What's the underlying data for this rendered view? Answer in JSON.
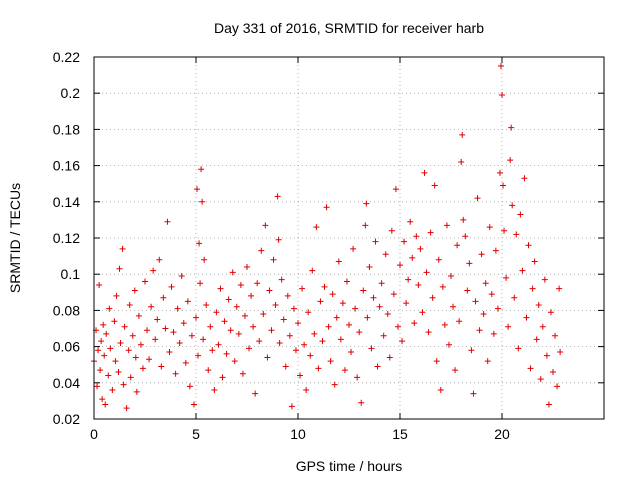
{
  "chart_data": {
    "type": "scatter",
    "title": "Day 331 of 2016, SRMTID for receiver harb",
    "xlabel": "GPS time / hours",
    "ylabel": "SRMTID / TECUs",
    "xlim": [
      0,
      25
    ],
    "ylim": [
      0.02,
      0.22
    ],
    "x_ticks": [
      0,
      5,
      10,
      15,
      20
    ],
    "x_tick_labels": [
      "0",
      "5",
      "10",
      "15",
      "20"
    ],
    "y_ticks": [
      0.02,
      0.04,
      0.06,
      0.08,
      0.1,
      0.12,
      0.14,
      0.16,
      0.18,
      0.2,
      0.22
    ],
    "y_tick_labels": [
      "0.02",
      "0.04",
      "0.06",
      "0.08",
      "0.1",
      "0.12",
      "0.14",
      "0.16",
      "0.18",
      "0.2",
      "0.22"
    ],
    "grid": true,
    "marker": "+",
    "series_color": "#e00000",
    "series": [
      {
        "name": "SRMTID",
        "points": [
          [
            0.0,
            0.052
          ],
          [
            0.1,
            0.069
          ],
          [
            0.15,
            0.038
          ],
          [
            0.2,
            0.058
          ],
          [
            0.25,
            0.094
          ],
          [
            0.3,
            0.047
          ],
          [
            0.35,
            0.063
          ],
          [
            0.4,
            0.031
          ],
          [
            0.45,
            0.072
          ],
          [
            0.5,
            0.055
          ],
          [
            0.55,
            0.028
          ],
          [
            0.6,
            0.067
          ],
          [
            0.7,
            0.044
          ],
          [
            0.75,
            0.081
          ],
          [
            0.8,
            0.059
          ],
          [
            0.9,
            0.036
          ],
          [
            1.0,
            0.074
          ],
          [
            1.05,
            0.052
          ],
          [
            1.1,
            0.088
          ],
          [
            1.2,
            0.046
          ],
          [
            1.25,
            0.103
          ],
          [
            1.3,
            0.062
          ],
          [
            1.4,
            0.114
          ],
          [
            1.45,
            0.039
          ],
          [
            1.5,
            0.071
          ],
          [
            1.6,
            0.026
          ],
          [
            1.7,
            0.058
          ],
          [
            1.75,
            0.083
          ],
          [
            1.8,
            0.043
          ],
          [
            1.9,
            0.066
          ],
          [
            2.0,
            0.091
          ],
          [
            2.05,
            0.054
          ],
          [
            2.1,
            0.035
          ],
          [
            2.2,
            0.077
          ],
          [
            2.3,
            0.061
          ],
          [
            2.4,
            0.048
          ],
          [
            2.5,
            0.096
          ],
          [
            2.6,
            0.069
          ],
          [
            2.7,
            0.053
          ],
          [
            2.8,
            0.082
          ],
          [
            2.9,
            0.102
          ],
          [
            3.0,
            0.064
          ],
          [
            3.1,
            0.075
          ],
          [
            3.2,
            0.108
          ],
          [
            3.3,
            0.049
          ],
          [
            3.4,
            0.087
          ],
          [
            3.5,
            0.07
          ],
          [
            3.6,
            0.129
          ],
          [
            3.7,
            0.057
          ],
          [
            3.8,
            0.093
          ],
          [
            3.9,
            0.068
          ],
          [
            4.0,
            0.045
          ],
          [
            4.1,
            0.081
          ],
          [
            4.2,
            0.062
          ],
          [
            4.3,
            0.099
          ],
          [
            4.4,
            0.073
          ],
          [
            4.5,
            0.051
          ],
          [
            4.6,
            0.085
          ],
          [
            4.7,
            0.038
          ],
          [
            4.8,
            0.066
          ],
          [
            4.9,
            0.028
          ],
          [
            5.0,
            0.076
          ],
          [
            5.05,
            0.147
          ],
          [
            5.1,
            0.055
          ],
          [
            5.15,
            0.117
          ],
          [
            5.2,
            0.095
          ],
          [
            5.25,
            0.158
          ],
          [
            5.3,
            0.14
          ],
          [
            5.35,
            0.064
          ],
          [
            5.4,
            0.108
          ],
          [
            5.5,
            0.083
          ],
          [
            5.6,
            0.047
          ],
          [
            5.7,
            0.071
          ],
          [
            5.8,
            0.058
          ],
          [
            5.9,
            0.036
          ],
          [
            6.0,
            0.079
          ],
          [
            6.1,
            0.061
          ],
          [
            6.2,
            0.092
          ],
          [
            6.3,
            0.043
          ],
          [
            6.4,
            0.074
          ],
          [
            6.5,
            0.056
          ],
          [
            6.6,
            0.086
          ],
          [
            6.7,
            0.069
          ],
          [
            6.8,
            0.101
          ],
          [
            6.9,
            0.052
          ],
          [
            7.0,
            0.082
          ],
          [
            7.1,
            0.067
          ],
          [
            7.2,
            0.094
          ],
          [
            7.3,
            0.045
          ],
          [
            7.4,
            0.077
          ],
          [
            7.5,
            0.104
          ],
          [
            7.6,
            0.059
          ],
          [
            7.7,
            0.088
          ],
          [
            7.8,
            0.071
          ],
          [
            7.9,
            0.034
          ],
          [
            8.0,
            0.095
          ],
          [
            8.1,
            0.063
          ],
          [
            8.2,
            0.113
          ],
          [
            8.3,
            0.078
          ],
          [
            8.4,
            0.127
          ],
          [
            8.5,
            0.054
          ],
          [
            8.6,
            0.091
          ],
          [
            8.7,
            0.069
          ],
          [
            8.8,
            0.108
          ],
          [
            8.9,
            0.083
          ],
          [
            9.0,
            0.143
          ],
          [
            9.05,
            0.119
          ],
          [
            9.1,
            0.062
          ],
          [
            9.2,
            0.097
          ],
          [
            9.3,
            0.075
          ],
          [
            9.4,
            0.049
          ],
          [
            9.5,
            0.088
          ],
          [
            9.6,
            0.066
          ],
          [
            9.7,
            0.027
          ],
          [
            9.8,
            0.081
          ],
          [
            9.9,
            0.058
          ],
          [
            10.0,
            0.073
          ],
          [
            10.1,
            0.044
          ],
          [
            10.2,
            0.092
          ],
          [
            10.3,
            0.061
          ],
          [
            10.4,
            0.036
          ],
          [
            10.5,
            0.079
          ],
          [
            10.6,
            0.055
          ],
          [
            10.7,
            0.102
          ],
          [
            10.8,
            0.067
          ],
          [
            10.9,
            0.126
          ],
          [
            11.0,
            0.048
          ],
          [
            11.1,
            0.085
          ],
          [
            11.2,
            0.063
          ],
          [
            11.3,
            0.093
          ],
          [
            11.4,
            0.137
          ],
          [
            11.5,
            0.071
          ],
          [
            11.6,
            0.052
          ],
          [
            11.7,
            0.089
          ],
          [
            11.8,
            0.039
          ],
          [
            11.9,
            0.076
          ],
          [
            12.0,
            0.107
          ],
          [
            12.1,
            0.064
          ],
          [
            12.2,
            0.084
          ],
          [
            12.3,
            0.047
          ],
          [
            12.4,
            0.096
          ],
          [
            12.5,
            0.072
          ],
          [
            12.6,
            0.057
          ],
          [
            12.7,
            0.114
          ],
          [
            12.8,
            0.081
          ],
          [
            12.9,
            0.043
          ],
          [
            13.0,
            0.068
          ],
          [
            13.1,
            0.029
          ],
          [
            13.2,
            0.091
          ],
          [
            13.3,
            0.127
          ],
          [
            13.35,
            0.139
          ],
          [
            13.4,
            0.076
          ],
          [
            13.5,
            0.104
          ],
          [
            13.6,
            0.059
          ],
          [
            13.7,
            0.087
          ],
          [
            13.8,
            0.118
          ],
          [
            13.9,
            0.049
          ],
          [
            14.0,
            0.082
          ],
          [
            14.1,
            0.095
          ],
          [
            14.2,
            0.066
          ],
          [
            14.3,
            0.111
          ],
          [
            14.4,
            0.078
          ],
          [
            14.5,
            0.054
          ],
          [
            14.6,
            0.124
          ],
          [
            14.7,
            0.089
          ],
          [
            14.8,
            0.147
          ],
          [
            14.9,
            0.071
          ],
          [
            15.0,
            0.105
          ],
          [
            15.1,
            0.063
          ],
          [
            15.2,
            0.118
          ],
          [
            15.3,
            0.084
          ],
          [
            15.4,
            0.097
          ],
          [
            15.5,
            0.129
          ],
          [
            15.6,
            0.109
          ],
          [
            15.7,
            0.073
          ],
          [
            15.8,
            0.121
          ],
          [
            15.9,
            0.094
          ],
          [
            16.0,
            0.114
          ],
          [
            16.1,
            0.079
          ],
          [
            16.2,
            0.156
          ],
          [
            16.3,
            0.101
          ],
          [
            16.4,
            0.068
          ],
          [
            16.5,
            0.123
          ],
          [
            16.6,
            0.087
          ],
          [
            16.7,
            0.149
          ],
          [
            16.8,
            0.052
          ],
          [
            16.9,
            0.108
          ],
          [
            17.0,
            0.036
          ],
          [
            17.1,
            0.093
          ],
          [
            17.2,
            0.072
          ],
          [
            17.3,
            0.127
          ],
          [
            17.4,
            0.061
          ],
          [
            17.5,
            0.099
          ],
          [
            17.6,
            0.082
          ],
          [
            17.7,
            0.047
          ],
          [
            17.8,
            0.116
          ],
          [
            17.9,
            0.074
          ],
          [
            18.0,
            0.162
          ],
          [
            18.05,
            0.177
          ],
          [
            18.1,
            0.13
          ],
          [
            18.2,
            0.121
          ],
          [
            18.3,
            0.091
          ],
          [
            18.4,
            0.106
          ],
          [
            18.5,
            0.058
          ],
          [
            18.6,
            0.034
          ],
          [
            18.7,
            0.085
          ],
          [
            18.8,
            0.142
          ],
          [
            18.9,
            0.069
          ],
          [
            19.0,
            0.111
          ],
          [
            19.1,
            0.078
          ],
          [
            19.2,
            0.095
          ],
          [
            19.3,
            0.052
          ],
          [
            19.4,
            0.126
          ],
          [
            19.5,
            0.089
          ],
          [
            19.6,
            0.067
          ],
          [
            19.7,
            0.113
          ],
          [
            19.8,
            0.081
          ],
          [
            19.9,
            0.156
          ],
          [
            19.95,
            0.215
          ],
          [
            20.0,
            0.199
          ],
          [
            20.05,
            0.149
          ],
          [
            20.1,
            0.124
          ],
          [
            20.2,
            0.098
          ],
          [
            20.3,
            0.071
          ],
          [
            20.4,
            0.163
          ],
          [
            20.45,
            0.181
          ],
          [
            20.5,
            0.138
          ],
          [
            20.6,
            0.087
          ],
          [
            20.7,
            0.122
          ],
          [
            20.8,
            0.059
          ],
          [
            20.9,
            0.133
          ],
          [
            21.0,
            0.102
          ],
          [
            21.1,
            0.153
          ],
          [
            21.2,
            0.076
          ],
          [
            21.3,
            0.116
          ],
          [
            21.4,
            0.048
          ],
          [
            21.5,
            0.092
          ],
          [
            21.6,
            0.107
          ],
          [
            21.7,
            0.064
          ],
          [
            21.8,
            0.083
          ],
          [
            21.9,
            0.042
          ],
          [
            22.0,
            0.071
          ],
          [
            22.1,
            0.097
          ],
          [
            22.2,
            0.055
          ],
          [
            22.3,
            0.028
          ],
          [
            22.4,
            0.079
          ],
          [
            22.5,
            0.046
          ],
          [
            22.6,
            0.066
          ],
          [
            22.7,
            0.038
          ],
          [
            22.8,
            0.092
          ],
          [
            22.85,
            0.057
          ]
        ]
      }
    ]
  }
}
